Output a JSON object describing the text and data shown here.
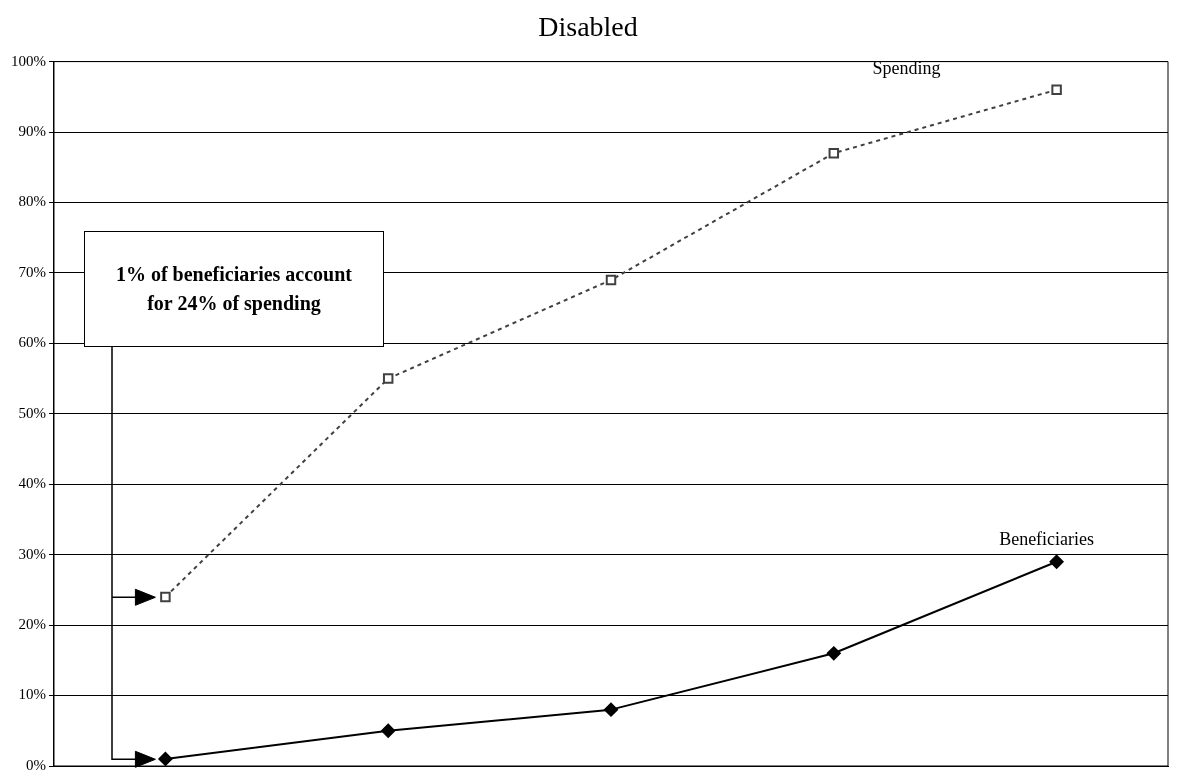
{
  "chart_data": {
    "type": "line",
    "title": "Disabled",
    "categories": [
      null,
      null,
      null,
      null,
      null
    ],
    "series": [
      {
        "name": "Spending",
        "color": "#404040",
        "values": [
          24,
          55,
          69,
          87,
          96
        ],
        "marker": "square",
        "line_style": "dashed"
      },
      {
        "name": "Beneficiaries",
        "color": "#000000",
        "values": [
          1,
          5,
          8,
          16,
          29
        ],
        "marker": "diamond",
        "line_style": "solid"
      }
    ],
    "ylim": [
      0,
      100
    ],
    "yticks": [
      {
        "value": 0,
        "label": "0%"
      },
      {
        "value": 10,
        "label": "10%"
      },
      {
        "value": 20,
        "label": "20%"
      },
      {
        "value": 30,
        "label": "30%"
      },
      {
        "value": 40,
        "label": "40%"
      },
      {
        "value": 50,
        "label": "50%"
      },
      {
        "value": 60,
        "label": "60%"
      },
      {
        "value": 70,
        "label": "70%"
      },
      {
        "value": 80,
        "label": "80%"
      },
      {
        "value": 90,
        "label": "90%"
      },
      {
        "value": 100,
        "label": "100%"
      }
    ],
    "grid": "y",
    "legend": false,
    "tick_labels": "y",
    "annotations": [
      "1% of beneficiaries account for 24% of spending"
    ]
  }
}
